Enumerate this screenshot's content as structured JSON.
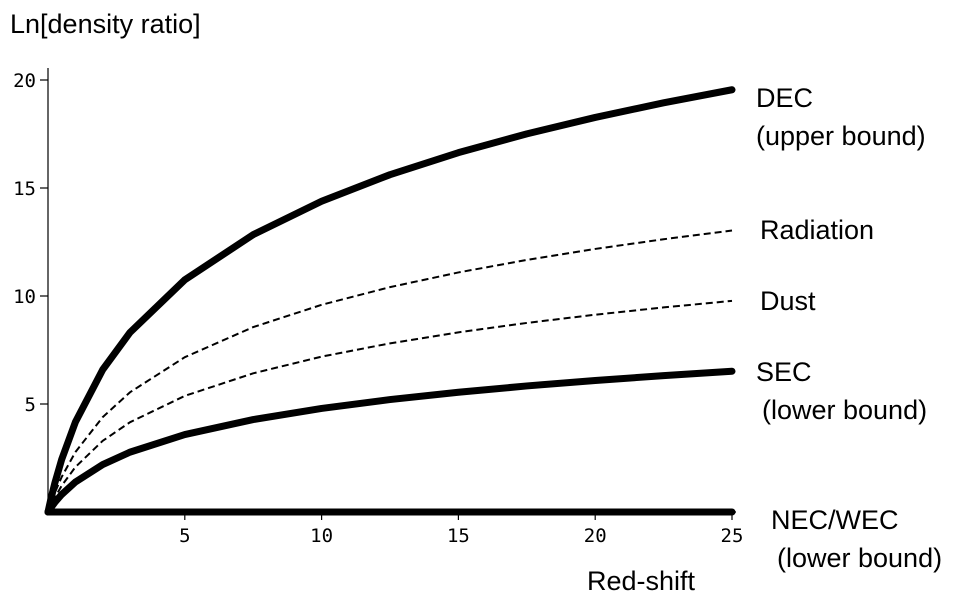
{
  "chart_data": {
    "type": "line",
    "ylabel": "Ln[density ratio]",
    "xlabel": "Red-shift",
    "xlim": [
      0,
      25
    ],
    "ylim": [
      0,
      20
    ],
    "xticks": [
      5,
      10,
      15,
      20,
      25
    ],
    "yticks": [
      5,
      10,
      15,
      20
    ],
    "grid": false,
    "series": [
      {
        "key": "dec",
        "label_line1": "DEC",
        "label_line2": "(upper bound)",
        "style": "solid-thick",
        "coef": 6
      },
      {
        "key": "radiation",
        "label_line1": "Radiation",
        "label_line2": "",
        "style": "dashed",
        "coef": 4
      },
      {
        "key": "dust",
        "label_line1": "Dust",
        "label_line2": "",
        "style": "dashed",
        "coef": 3
      },
      {
        "key": "sec",
        "label_line1": "SEC",
        "label_line2": "(lower bound)",
        "style": "solid-thick",
        "coef": 2
      },
      {
        "key": "nec",
        "label_line1": "NEC/WEC",
        "label_line2": "(lower bound)",
        "style": "solid-thick",
        "coef": 0
      }
    ],
    "x_sample": [
      0,
      0.1,
      0.25,
      0.5,
      1,
      2,
      3,
      5,
      7.5,
      10,
      12.5,
      15,
      17.5,
      20,
      22.5,
      25
    ],
    "y_formula": "coef * ln(1 + x)"
  }
}
